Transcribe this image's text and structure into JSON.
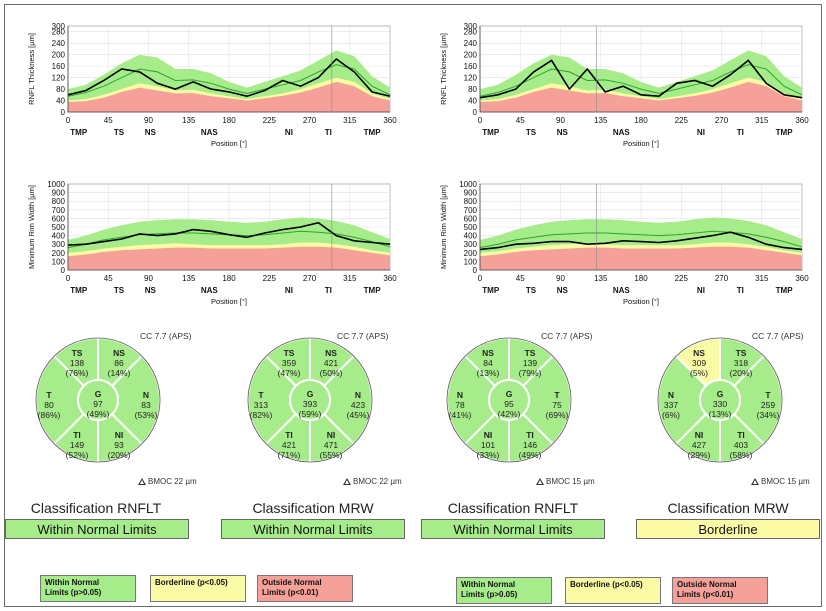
{
  "colors": {
    "normal": "#a7ec8a",
    "normal_light": "#c8f5ae",
    "borderline": "#fbfaa5",
    "outside": "#f5a199",
    "measured": "#000000",
    "mean": "#2aa52a"
  },
  "axis": {
    "x_ticks": [
      "0",
      "45",
      "90",
      "135",
      "180",
      "225",
      "270",
      "315",
      "360"
    ],
    "regions": [
      "TMP",
      "TS",
      "NS",
      "NAS",
      "NI",
      "TI",
      "TMP"
    ],
    "x_title": "Position [°]",
    "rnfl_title": "RNFL Thickness [µm]",
    "mrw_title": "Minimum Rim Width [µm]",
    "rnfl_y_ticks": [
      "0",
      "40",
      "80",
      "120",
      "160",
      "200",
      "240",
      "280",
      "300"
    ],
    "mrw_y_ticks": [
      "0",
      "100",
      "200",
      "300",
      "400",
      "500",
      "600",
      "700",
      "800",
      "900",
      "1000"
    ]
  },
  "chart_data": [
    {
      "type": "area",
      "title": "",
      "xlabel": "Position [°]",
      "ylabel": "RNFL Thickness [µm]",
      "xlim": [
        0,
        360
      ],
      "ylim": [
        0,
        300
      ],
      "x": [
        0,
        20,
        40,
        60,
        80,
        100,
        120,
        140,
        160,
        180,
        200,
        220,
        240,
        260,
        280,
        300,
        320,
        340,
        360
      ],
      "series": [
        {
          "values": [
            60,
            75,
            110,
            150,
            140,
            100,
            80,
            105,
            80,
            70,
            55,
            75,
            110,
            90,
            120,
            185,
            140,
            70,
            55
          ]
        },
        {
          "values": [
            55,
            68,
            90,
            120,
            150,
            140,
            110,
            112,
            100,
            80,
            65,
            80,
            95,
            110,
            140,
            165,
            150,
            90,
            60
          ]
        },
        {
          "values": [
            80,
            95,
            130,
            170,
            200,
            190,
            150,
            150,
            135,
            105,
            85,
            105,
            125,
            145,
            180,
            215,
            195,
            125,
            85
          ]
        },
        {
          "values": [
            40,
            45,
            60,
            80,
            100,
            90,
            75,
            78,
            65,
            55,
            45,
            55,
            65,
            80,
            100,
            120,
            105,
            65,
            45
          ]
        },
        {
          "values": [
            35,
            38,
            50,
            70,
            85,
            75,
            65,
            66,
            55,
            48,
            40,
            48,
            56,
            68,
            85,
            105,
            90,
            55,
            40
          ]
        }
      ]
    },
    {
      "type": "area",
      "title": "",
      "xlabel": "Position [°]",
      "ylabel": "Minimum Rim Width [µm]",
      "xlim": [
        0,
        360
      ],
      "ylim": [
        0,
        1000
      ],
      "x": [
        0,
        20,
        40,
        60,
        80,
        100,
        120,
        140,
        160,
        180,
        200,
        220,
        240,
        260,
        280,
        300,
        320,
        340,
        360
      ],
      "series": [
        {
          "values": [
            290,
            300,
            330,
            360,
            420,
            400,
            420,
            470,
            450,
            410,
            380,
            430,
            470,
            500,
            550,
            400,
            340,
            320,
            300
          ]
        },
        {
          "values": [
            260,
            300,
            350,
            380,
            410,
            420,
            430,
            430,
            420,
            410,
            400,
            410,
            430,
            450,
            440,
            420,
            380,
            330,
            270
          ]
        },
        {
          "values": [
            350,
            400,
            470,
            520,
            560,
            580,
            590,
            590,
            580,
            560,
            550,
            560,
            590,
            610,
            600,
            570,
            520,
            440,
            360
          ]
        },
        {
          "values": [
            200,
            220,
            250,
            270,
            290,
            300,
            310,
            300,
            290,
            290,
            290,
            290,
            300,
            320,
            320,
            300,
            270,
            230,
            200
          ]
        },
        {
          "values": [
            160,
            180,
            210,
            230,
            240,
            250,
            260,
            260,
            250,
            250,
            250,
            250,
            260,
            270,
            270,
            260,
            230,
            200,
            170
          ]
        }
      ]
    },
    {
      "type": "area",
      "title": "",
      "xlabel": "Position [°]",
      "ylabel": "RNFL Thickness [µm]",
      "xlim": [
        0,
        360
      ],
      "ylim": [
        0,
        300
      ],
      "x": [
        0,
        20,
        40,
        60,
        80,
        100,
        120,
        140,
        160,
        180,
        200,
        220,
        240,
        260,
        280,
        300,
        320,
        340,
        360
      ],
      "series": [
        {
          "values": [
            50,
            60,
            80,
            140,
            180,
            80,
            150,
            70,
            90,
            60,
            55,
            100,
            110,
            90,
            130,
            180,
            100,
            60,
            50
          ]
        },
        {
          "values": [
            55,
            68,
            90,
            120,
            150,
            140,
            110,
            112,
            100,
            80,
            65,
            80,
            95,
            110,
            140,
            165,
            150,
            90,
            60
          ]
        },
        {
          "values": [
            80,
            95,
            130,
            170,
            200,
            190,
            150,
            150,
            135,
            105,
            85,
            105,
            125,
            145,
            180,
            215,
            195,
            125,
            85
          ]
        },
        {
          "values": [
            40,
            45,
            60,
            80,
            100,
            90,
            75,
            78,
            65,
            55,
            45,
            55,
            65,
            80,
            100,
            120,
            105,
            65,
            45
          ]
        },
        {
          "values": [
            35,
            38,
            50,
            70,
            85,
            75,
            65,
            66,
            55,
            48,
            40,
            48,
            56,
            68,
            85,
            105,
            90,
            55,
            40
          ]
        }
      ]
    },
    {
      "type": "area",
      "title": "",
      "xlabel": "Position [°]",
      "ylabel": "Minimum Rim Width [µm]",
      "xlim": [
        0,
        360
      ],
      "ylim": [
        0,
        1000
      ],
      "x": [
        0,
        20,
        40,
        60,
        80,
        100,
        120,
        140,
        160,
        180,
        200,
        220,
        240,
        260,
        280,
        300,
        320,
        340,
        360
      ],
      "series": [
        {
          "values": [
            240,
            260,
            300,
            310,
            330,
            330,
            300,
            310,
            340,
            330,
            320,
            340,
            370,
            400,
            440,
            380,
            300,
            260,
            240
          ]
        },
        {
          "values": [
            260,
            300,
            350,
            380,
            410,
            420,
            430,
            430,
            420,
            410,
            400,
            410,
            430,
            450,
            440,
            420,
            380,
            330,
            270
          ]
        },
        {
          "values": [
            350,
            400,
            470,
            520,
            560,
            580,
            590,
            590,
            580,
            560,
            550,
            560,
            590,
            610,
            600,
            570,
            520,
            440,
            360
          ]
        },
        {
          "values": [
            200,
            220,
            250,
            270,
            290,
            300,
            310,
            300,
            290,
            290,
            290,
            290,
            300,
            320,
            320,
            300,
            270,
            230,
            200
          ]
        },
        {
          "values": [
            160,
            180,
            210,
            230,
            240,
            250,
            260,
            260,
            250,
            250,
            250,
            250,
            260,
            270,
            270,
            260,
            230,
            200,
            170
          ]
        }
      ]
    }
  ],
  "sector_charts": [
    {
      "cc": "CC 7.7 (APS)",
      "bmo": "BMOC 22 µm",
      "sectors": {
        "TS": {
          "name": "TS",
          "value": "138",
          "pct": "(76%)",
          "status": "normal"
        },
        "NS": {
          "name": "NS",
          "value": "86",
          "pct": "(14%)",
          "status": "normal"
        },
        "LEFT": {
          "name": "T",
          "value": "80",
          "pct": "(86%)",
          "status": "normal"
        },
        "RIGHT": {
          "name": "N",
          "value": "83",
          "pct": "(53%)",
          "status": "normal"
        },
        "TI": {
          "name": "TI",
          "value": "149",
          "pct": "(52%)",
          "status": "normal"
        },
        "NI": {
          "name": "NI",
          "value": "93",
          "pct": "(20%)",
          "status": "normal"
        },
        "G": {
          "name": "G",
          "value": "97",
          "pct": "(49%)",
          "status": "normal"
        }
      },
      "layout": {
        "ul": "TS",
        "ur": "NS",
        "ll": "TI",
        "lr": "NI"
      }
    },
    {
      "cc": "CC 7.7 (APS)",
      "bmo": "BMOC 22 µm",
      "sectors": {
        "TS": {
          "name": "TS",
          "value": "359",
          "pct": "(47%)",
          "status": "normal"
        },
        "NS": {
          "name": "NS",
          "value": "421",
          "pct": "(50%)",
          "status": "normal"
        },
        "LEFT": {
          "name": "T",
          "value": "313",
          "pct": "(82%)",
          "status": "normal"
        },
        "RIGHT": {
          "name": "N",
          "value": "423",
          "pct": "(45%)",
          "status": "normal"
        },
        "TI": {
          "name": "TI",
          "value": "421",
          "pct": "(71%)",
          "status": "normal"
        },
        "NI": {
          "name": "NI",
          "value": "471",
          "pct": "(55%)",
          "status": "normal"
        },
        "G": {
          "name": "G",
          "value": "393",
          "pct": "(59%)",
          "status": "normal"
        }
      },
      "layout": {
        "ul": "TS",
        "ur": "NS",
        "ll": "TI",
        "lr": "NI"
      }
    },
    {
      "cc": "CC 7.7 (APS)",
      "bmo": "BMOC 15 µm",
      "sectors": {
        "NS": {
          "name": "NS",
          "value": "84",
          "pct": "(13%)",
          "status": "normal"
        },
        "TS": {
          "name": "TS",
          "value": "139",
          "pct": "(79%)",
          "status": "normal"
        },
        "LEFT": {
          "name": "N",
          "value": "78",
          "pct": "(41%)",
          "status": "normal"
        },
        "RIGHT": {
          "name": "T",
          "value": "75",
          "pct": "(69%)",
          "status": "normal"
        },
        "NI": {
          "name": "NI",
          "value": "101",
          "pct": "(33%)",
          "status": "normal"
        },
        "TI": {
          "name": "TI",
          "value": "146",
          "pct": "(49%)",
          "status": "normal"
        },
        "G": {
          "name": "G",
          "value": "95",
          "pct": "(42%)",
          "status": "normal"
        }
      },
      "layout": {
        "ul": "NS",
        "ur": "TS",
        "ll": "NI",
        "lr": "TI"
      }
    },
    {
      "cc": "CC 7.7 (APS)",
      "bmo": "BMOC 15 µm",
      "sectors": {
        "NS": {
          "name": "NS",
          "value": "309",
          "pct": "(5%)",
          "status": "borderline"
        },
        "TS": {
          "name": "TS",
          "value": "318",
          "pct": "(20%)",
          "status": "normal"
        },
        "LEFT": {
          "name": "N",
          "value": "337",
          "pct": "(6%)",
          "status": "normal"
        },
        "RIGHT": {
          "name": "T",
          "value": "259",
          "pct": "(34%)",
          "status": "normal"
        },
        "NI": {
          "name": "NI",
          "value": "427",
          "pct": "(29%)",
          "status": "normal"
        },
        "TI": {
          "name": "TI",
          "value": "403",
          "pct": "(58%)",
          "status": "normal"
        },
        "G": {
          "name": "G",
          "value": "330",
          "pct": "(13%)",
          "status": "normal"
        }
      },
      "layout": {
        "ul": "NS",
        "ur": "TS",
        "ll": "NI",
        "lr": "TI"
      }
    }
  ],
  "classifications": [
    {
      "title": "Classification RNFLT",
      "result": "Within Normal Limits",
      "status": "normal"
    },
    {
      "title": "Classification MRW",
      "result": "Within Normal Limits",
      "status": "normal"
    },
    {
      "title": "Classification RNFLT",
      "result": "Within Normal Limits",
      "status": "normal"
    },
    {
      "title": "Classification MRW",
      "result": "Borderline",
      "status": "borderline"
    }
  ],
  "legend": {
    "normal": {
      "line1": "Within Normal",
      "line2": "Limits (p>0.05)"
    },
    "borderline": {
      "line1": "Borderline (p<0.05)"
    },
    "outside": {
      "line1": "Outside Normal",
      "line2": "Limits (p<0.01)"
    }
  }
}
